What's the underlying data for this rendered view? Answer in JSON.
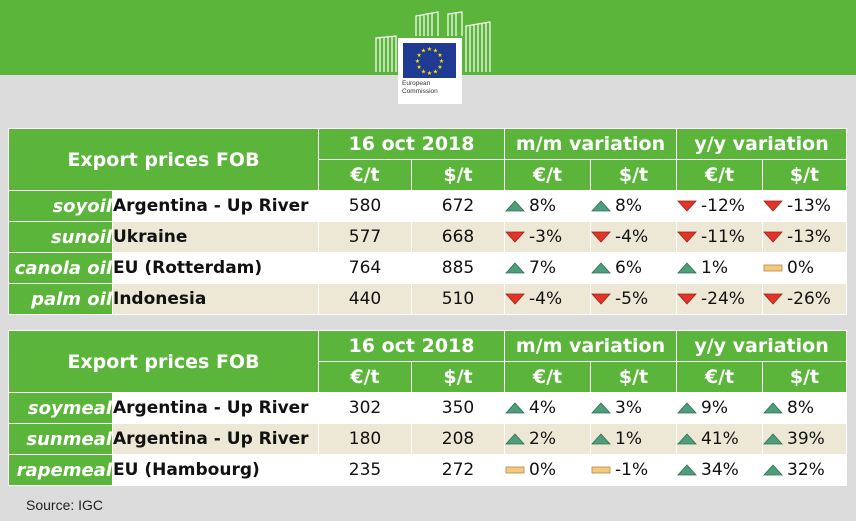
{
  "header": {
    "logo_line1": "European",
    "logo_line2": "Commission"
  },
  "colors": {
    "green": "#5bb53a",
    "up": "#4e9e7b",
    "down": "#e1352a",
    "flat": "#f5c97c",
    "stripe": "#ece8d5"
  },
  "tables": [
    {
      "title": "Export prices FOB",
      "date": "16 oct 2018",
      "mm_label": "m/m variation",
      "yy_label": "y/y variation",
      "units": [
        "€/t",
        "$/t",
        "€/t",
        "$/t",
        "€/t",
        "$/t"
      ],
      "rows": [
        {
          "product": "soyoil",
          "origin": "Argentina - Up River",
          "eur": "580",
          "usd": "672",
          "mm_eur": {
            "dir": "up",
            "text": "8%"
          },
          "mm_usd": {
            "dir": "up",
            "text": "8%"
          },
          "yy_eur": {
            "dir": "down",
            "text": "-12%"
          },
          "yy_usd": {
            "dir": "down",
            "text": "-13%"
          }
        },
        {
          "product": "sunoil",
          "origin": "Ukraine",
          "eur": "577",
          "usd": "668",
          "mm_eur": {
            "dir": "down",
            "text": "-3%"
          },
          "mm_usd": {
            "dir": "down",
            "text": "-4%"
          },
          "yy_eur": {
            "dir": "down",
            "text": "-11%"
          },
          "yy_usd": {
            "dir": "down",
            "text": "-13%"
          }
        },
        {
          "product": "canola oil",
          "origin": "EU (Rotterdam)",
          "eur": "764",
          "usd": "885",
          "mm_eur": {
            "dir": "up",
            "text": "7%"
          },
          "mm_usd": {
            "dir": "up",
            "text": "6%"
          },
          "yy_eur": {
            "dir": "up",
            "text": "1%"
          },
          "yy_usd": {
            "dir": "flat",
            "text": "0%"
          }
        },
        {
          "product": "palm oil",
          "origin": "Indonesia",
          "eur": "440",
          "usd": "510",
          "mm_eur": {
            "dir": "down",
            "text": "-4%"
          },
          "mm_usd": {
            "dir": "down",
            "text": "-5%"
          },
          "yy_eur": {
            "dir": "down",
            "text": "-24%"
          },
          "yy_usd": {
            "dir": "down",
            "text": "-26%"
          }
        }
      ]
    },
    {
      "title": "Export prices FOB",
      "date": "16 oct 2018",
      "mm_label": "m/m variation",
      "yy_label": "y/y variation",
      "units": [
        "€/t",
        "$/t",
        "€/t",
        "$/t",
        "€/t",
        "$/t"
      ],
      "rows": [
        {
          "product": "soymeal",
          "origin": "Argentina - Up River",
          "eur": "302",
          "usd": "350",
          "mm_eur": {
            "dir": "up",
            "text": "4%"
          },
          "mm_usd": {
            "dir": "up",
            "text": "3%"
          },
          "yy_eur": {
            "dir": "up",
            "text": "9%"
          },
          "yy_usd": {
            "dir": "up",
            "text": "8%"
          }
        },
        {
          "product": "sunmeal",
          "origin": "Argentina - Up River",
          "eur": "180",
          "usd": "208",
          "mm_eur": {
            "dir": "up",
            "text": "2%"
          },
          "mm_usd": {
            "dir": "up",
            "text": "1%"
          },
          "yy_eur": {
            "dir": "up",
            "text": "41%"
          },
          "yy_usd": {
            "dir": "up",
            "text": "39%"
          }
        },
        {
          "product": "rapemeal",
          "origin": "EU (Hambourg)",
          "eur": "235",
          "usd": "272",
          "mm_eur": {
            "dir": "flat",
            "text": "0%"
          },
          "mm_usd": {
            "dir": "flat",
            "text": "-1%"
          },
          "yy_eur": {
            "dir": "up",
            "text": "34%"
          },
          "yy_usd": {
            "dir": "up",
            "text": "32%"
          }
        }
      ]
    }
  ],
  "footer": {
    "source": "Source:   IGC"
  }
}
